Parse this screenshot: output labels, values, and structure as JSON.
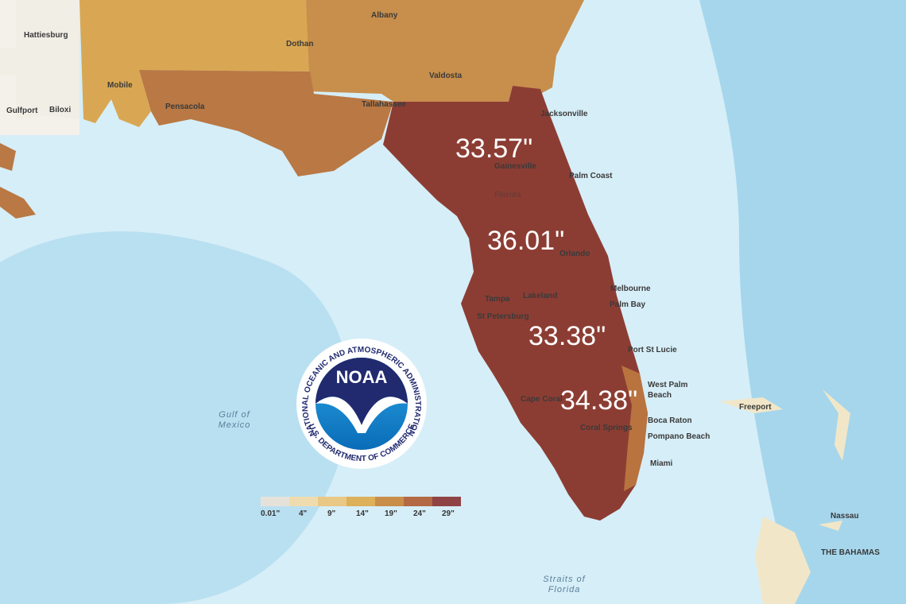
{
  "annotations": [
    "33.57\"",
    "36.01\"",
    "33.38\"",
    "34.38\""
  ],
  "places": [
    {
      "lines": [
        "Hattiesburg"
      ]
    },
    {
      "lines": [
        "Albany"
      ]
    },
    {
      "lines": [
        "Dothan"
      ]
    },
    {
      "lines": [
        "Mobile"
      ]
    },
    {
      "lines": [
        "Valdosta"
      ]
    },
    {
      "lines": [
        "Biloxi"
      ]
    },
    {
      "lines": [
        "Gulfport"
      ]
    },
    {
      "lines": [
        "Pensacola"
      ]
    },
    {
      "lines": [
        "Tallahassee"
      ]
    },
    {
      "lines": [
        "Jacksonville"
      ]
    },
    {
      "lines": [
        "Gainesville"
      ]
    },
    {
      "lines": [
        "Palm Coast"
      ]
    },
    {
      "lines": [
        "Florida"
      ]
    },
    {
      "lines": [
        "Orlando"
      ]
    },
    {
      "lines": [
        "Melbourne"
      ]
    },
    {
      "lines": [
        "Palm Bay"
      ]
    },
    {
      "lines": [
        "Tampa"
      ]
    },
    {
      "lines": [
        "Lakeland"
      ]
    },
    {
      "lines": [
        "St Petersburg"
      ]
    },
    {
      "lines": [
        "Port St Lucie"
      ]
    },
    {
      "lines": [
        "West Palm",
        "Beach"
      ]
    },
    {
      "lines": [
        "Cape Coral"
      ]
    },
    {
      "lines": [
        "Boca Raton"
      ]
    },
    {
      "lines": [
        "Pompano Beach"
      ]
    },
    {
      "lines": [
        "Coral Springs"
      ]
    },
    {
      "lines": [
        "Miami"
      ]
    },
    {
      "lines": [
        "Freeport"
      ]
    },
    {
      "lines": [
        "Nassau"
      ]
    },
    {
      "lines": [
        "THE BAHAMAS"
      ]
    },
    {
      "lines": [
        "Gulf of",
        "Mexico"
      ]
    },
    {
      "lines": [
        "Straits of",
        "Florida"
      ]
    }
  ],
  "legend": [
    {
      "label": "0.01\"",
      "color": "#e6e2da"
    },
    {
      "label": "4\"",
      "color": "#efdcae"
    },
    {
      "label": "9\"",
      "color": "#e9c886"
    },
    {
      "label": "14\"",
      "color": "#ddb05a"
    },
    {
      "label": "19\"",
      "color": "#c98e4a"
    },
    {
      "label": "24\"",
      "color": "#b36a44"
    },
    {
      "label": "29\"",
      "color": "#8f4344"
    }
  ],
  "logo": {
    "name": "NOAA",
    "top_text": "NATIONAL OCEANIC AND ATMOSPHERIC ADMINISTRATION",
    "bottom_text": "U.S. DEPARTMENT OF COMMERCE"
  }
}
